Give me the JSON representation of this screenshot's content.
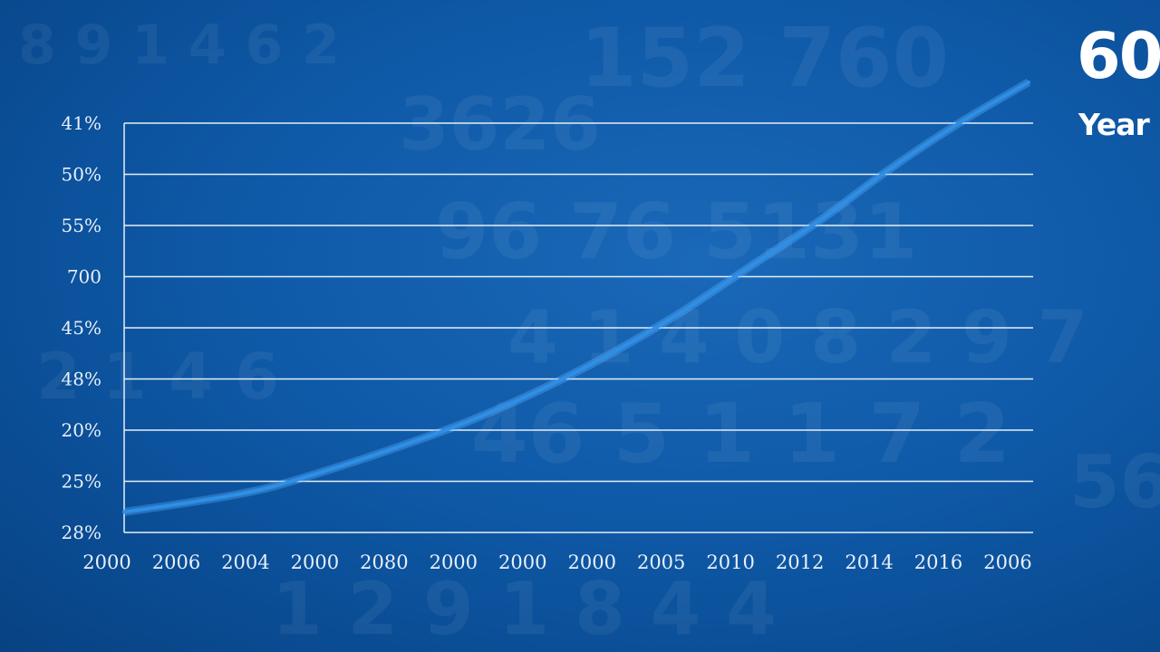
{
  "corner": {
    "big_text": "60",
    "small_text": "Year"
  },
  "colors": {
    "background": "#0f5aa8",
    "gridline": "#e6eef8",
    "line": "#2e8fe6",
    "text": "#e8f0fa"
  },
  "chart_data": {
    "type": "line",
    "grid": true,
    "legend": "none",
    "y_tick_labels": [
      "41%",
      "50%",
      "55%",
      "700",
      "45%",
      "48%",
      "20%",
      "25%",
      "28%"
    ],
    "x_tick_labels": [
      "2000",
      "2006",
      "2004",
      "2000",
      "2080",
      "2000",
      "2000",
      "2000",
      "2005",
      "2010",
      "2012",
      "2014",
      "2016",
      "2006"
    ],
    "y_range_index": [
      0,
      8
    ],
    "x_range_index": [
      0,
      13
    ],
    "series": [
      {
        "x": [
          0,
          1,
          2,
          3,
          4,
          5,
          6,
          7,
          8,
          9,
          10,
          11,
          12,
          13
        ],
        "y": [
          0.4,
          0.6,
          0.85,
          1.25,
          1.7,
          2.2,
          2.8,
          3.5,
          4.3,
          5.2,
          6.1,
          7.1,
          8.0,
          8.8
        ]
      }
    ]
  }
}
